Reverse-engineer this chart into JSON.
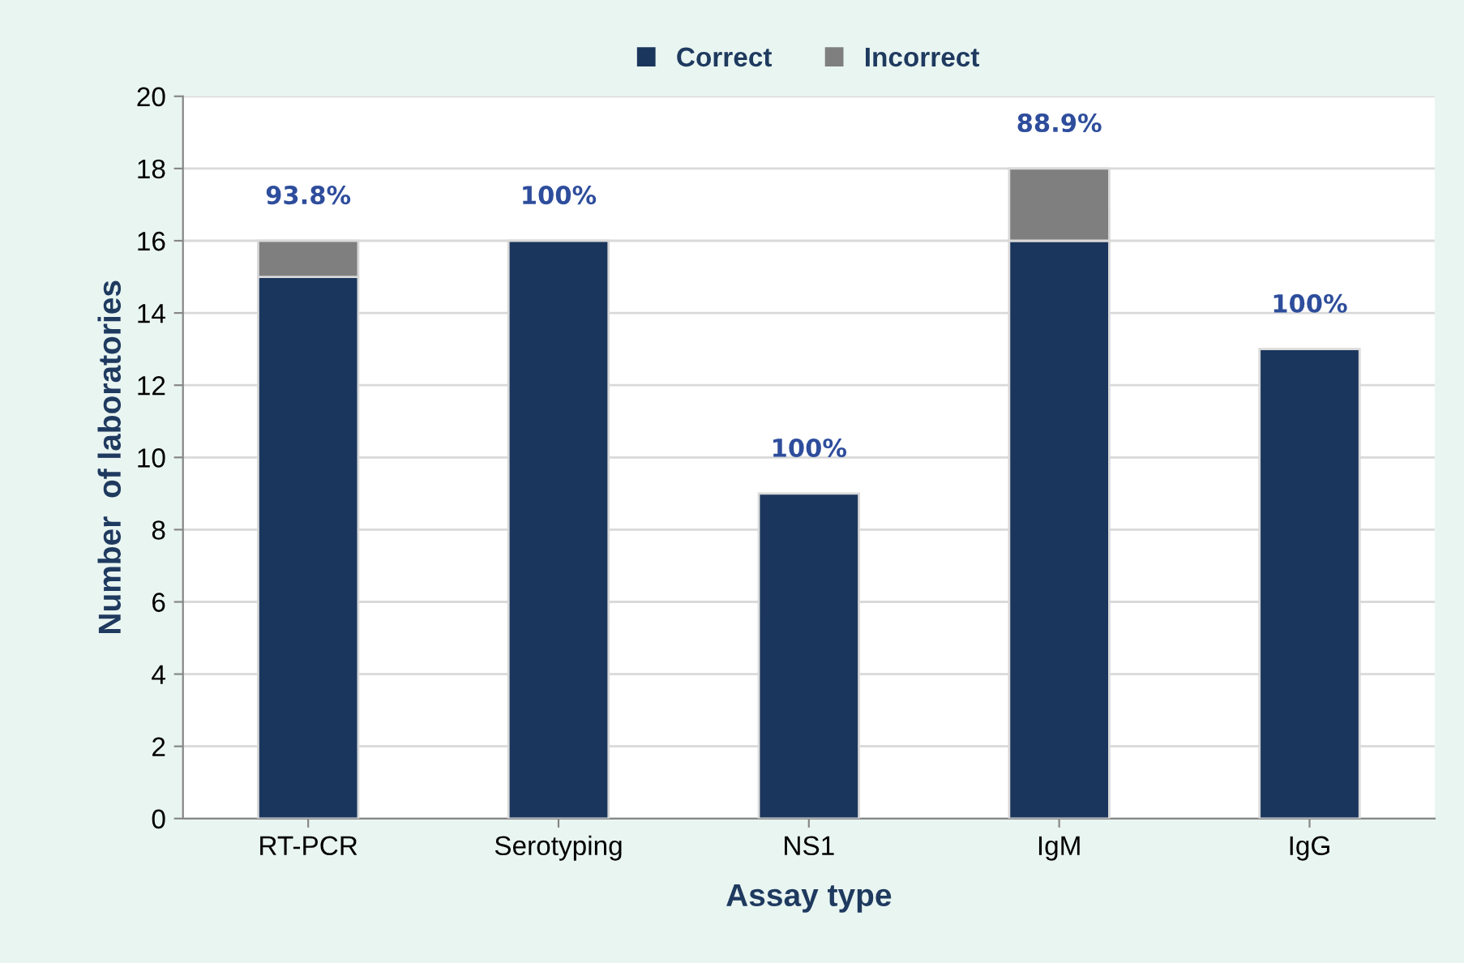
{
  "chart_data": {
    "type": "bar",
    "stacked": true,
    "xlabel": "Assay type",
    "ylabel": "Number  of laboratories",
    "categories": [
      "RT-PCR",
      "Serotyping",
      "NS1",
      "IgM",
      "IgG"
    ],
    "series": [
      {
        "name": "Correct",
        "color": "#1b365d",
        "values": [
          15,
          16,
          9,
          16,
          13
        ]
      },
      {
        "name": "Incorrect",
        "color": "#7f7f7f",
        "values": [
          1,
          0,
          0,
          2,
          0
        ]
      }
    ],
    "ylim": [
      0,
      20
    ],
    "yticks": [
      0,
      2,
      4,
      6,
      8,
      10,
      12,
      14,
      16,
      18,
      20
    ],
    "grid": "y",
    "legend": "top",
    "annotations": [
      {
        "text": "93.8%",
        "x": "RT-PCR",
        "y": 16
      },
      {
        "text": "100%",
        "x": "Serotyping",
        "y": 16
      },
      {
        "text": "100%",
        "x": "NS1",
        "y": 9
      },
      {
        "text": "88.9%",
        "x": "IgM",
        "y": 18
      },
      {
        "text": "100%",
        "x": "IgG",
        "y": 13
      }
    ]
  }
}
